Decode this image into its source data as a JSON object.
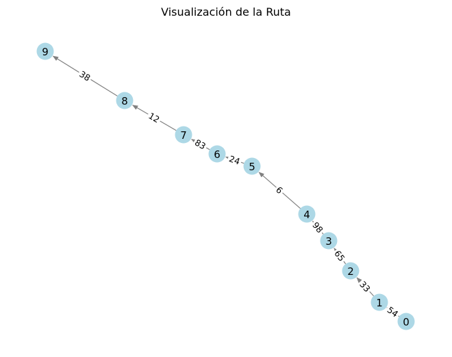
{
  "title": "Visualización de la Ruta",
  "colors": {
    "node_fill": "#add8e6",
    "edge": "#808080",
    "label_bg": "#ffffff"
  },
  "nodes": [
    "0",
    "1",
    "2",
    "3",
    "4",
    "5",
    "6",
    "7",
    "8",
    "9"
  ],
  "edges": [
    {
      "from": "0",
      "to": "1",
      "weight": "54"
    },
    {
      "from": "1",
      "to": "2",
      "weight": "33"
    },
    {
      "from": "2",
      "to": "3",
      "weight": "65"
    },
    {
      "from": "3",
      "to": "4",
      "weight": "98"
    },
    {
      "from": "4",
      "to": "5",
      "weight": "6"
    },
    {
      "from": "5",
      "to": "6",
      "weight": "24"
    },
    {
      "from": "6",
      "to": "7",
      "weight": "83"
    },
    {
      "from": "7",
      "to": "8",
      "weight": "12"
    },
    {
      "from": "8",
      "to": "9",
      "weight": "38"
    }
  ]
}
